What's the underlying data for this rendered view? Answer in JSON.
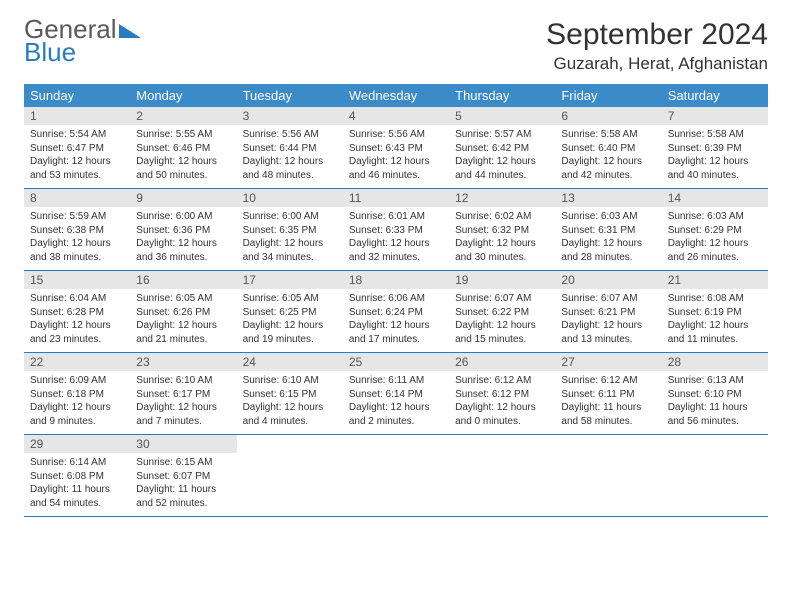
{
  "brand": {
    "general": "General",
    "blue": "Blue"
  },
  "header": {
    "title": "September 2024",
    "location": "Guzarah, Herat, Afghanistan"
  },
  "dayNames": [
    "Sunday",
    "Monday",
    "Tuesday",
    "Wednesday",
    "Thursday",
    "Friday",
    "Saturday"
  ],
  "colors": {
    "headerBg": "#3b8bc9",
    "rowBorder": "#2a7ac0",
    "dayStrip": "#e6e6e6"
  },
  "weeks": [
    [
      {
        "n": "1",
        "sr": "5:54 AM",
        "ss": "6:47 PM",
        "dl": "12 hours and 53 minutes."
      },
      {
        "n": "2",
        "sr": "5:55 AM",
        "ss": "6:46 PM",
        "dl": "12 hours and 50 minutes."
      },
      {
        "n": "3",
        "sr": "5:56 AM",
        "ss": "6:44 PM",
        "dl": "12 hours and 48 minutes."
      },
      {
        "n": "4",
        "sr": "5:56 AM",
        "ss": "6:43 PM",
        "dl": "12 hours and 46 minutes."
      },
      {
        "n": "5",
        "sr": "5:57 AM",
        "ss": "6:42 PM",
        "dl": "12 hours and 44 minutes."
      },
      {
        "n": "6",
        "sr": "5:58 AM",
        "ss": "6:40 PM",
        "dl": "12 hours and 42 minutes."
      },
      {
        "n": "7",
        "sr": "5:58 AM",
        "ss": "6:39 PM",
        "dl": "12 hours and 40 minutes."
      }
    ],
    [
      {
        "n": "8",
        "sr": "5:59 AM",
        "ss": "6:38 PM",
        "dl": "12 hours and 38 minutes."
      },
      {
        "n": "9",
        "sr": "6:00 AM",
        "ss": "6:36 PM",
        "dl": "12 hours and 36 minutes."
      },
      {
        "n": "10",
        "sr": "6:00 AM",
        "ss": "6:35 PM",
        "dl": "12 hours and 34 minutes."
      },
      {
        "n": "11",
        "sr": "6:01 AM",
        "ss": "6:33 PM",
        "dl": "12 hours and 32 minutes."
      },
      {
        "n": "12",
        "sr": "6:02 AM",
        "ss": "6:32 PM",
        "dl": "12 hours and 30 minutes."
      },
      {
        "n": "13",
        "sr": "6:03 AM",
        "ss": "6:31 PM",
        "dl": "12 hours and 28 minutes."
      },
      {
        "n": "14",
        "sr": "6:03 AM",
        "ss": "6:29 PM",
        "dl": "12 hours and 26 minutes."
      }
    ],
    [
      {
        "n": "15",
        "sr": "6:04 AM",
        "ss": "6:28 PM",
        "dl": "12 hours and 23 minutes."
      },
      {
        "n": "16",
        "sr": "6:05 AM",
        "ss": "6:26 PM",
        "dl": "12 hours and 21 minutes."
      },
      {
        "n": "17",
        "sr": "6:05 AM",
        "ss": "6:25 PM",
        "dl": "12 hours and 19 minutes."
      },
      {
        "n": "18",
        "sr": "6:06 AM",
        "ss": "6:24 PM",
        "dl": "12 hours and 17 minutes."
      },
      {
        "n": "19",
        "sr": "6:07 AM",
        "ss": "6:22 PM",
        "dl": "12 hours and 15 minutes."
      },
      {
        "n": "20",
        "sr": "6:07 AM",
        "ss": "6:21 PM",
        "dl": "12 hours and 13 minutes."
      },
      {
        "n": "21",
        "sr": "6:08 AM",
        "ss": "6:19 PM",
        "dl": "12 hours and 11 minutes."
      }
    ],
    [
      {
        "n": "22",
        "sr": "6:09 AM",
        "ss": "6:18 PM",
        "dl": "12 hours and 9 minutes."
      },
      {
        "n": "23",
        "sr": "6:10 AM",
        "ss": "6:17 PM",
        "dl": "12 hours and 7 minutes."
      },
      {
        "n": "24",
        "sr": "6:10 AM",
        "ss": "6:15 PM",
        "dl": "12 hours and 4 minutes."
      },
      {
        "n": "25",
        "sr": "6:11 AM",
        "ss": "6:14 PM",
        "dl": "12 hours and 2 minutes."
      },
      {
        "n": "26",
        "sr": "6:12 AM",
        "ss": "6:12 PM",
        "dl": "12 hours and 0 minutes."
      },
      {
        "n": "27",
        "sr": "6:12 AM",
        "ss": "6:11 PM",
        "dl": "11 hours and 58 minutes."
      },
      {
        "n": "28",
        "sr": "6:13 AM",
        "ss": "6:10 PM",
        "dl": "11 hours and 56 minutes."
      }
    ],
    [
      {
        "n": "29",
        "sr": "6:14 AM",
        "ss": "6:08 PM",
        "dl": "11 hours and 54 minutes."
      },
      {
        "n": "30",
        "sr": "6:15 AM",
        "ss": "6:07 PM",
        "dl": "11 hours and 52 minutes."
      },
      null,
      null,
      null,
      null,
      null
    ]
  ],
  "labels": {
    "sunrise": "Sunrise:",
    "sunset": "Sunset:",
    "daylight": "Daylight:"
  }
}
